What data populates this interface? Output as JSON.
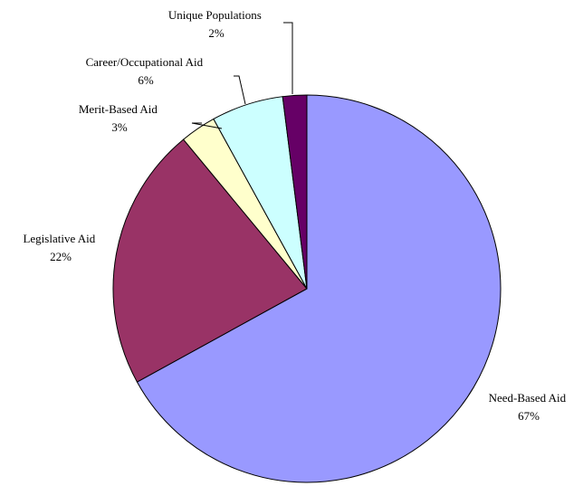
{
  "chart_data": {
    "type": "pie",
    "categories": [
      "Need-Based Aid",
      "Legislative Aid",
      "Merit-Based Aid",
      "Career/Occupational Aid",
      "Unique Populations"
    ],
    "values": [
      67,
      22,
      3,
      6,
      2
    ],
    "value_labels": [
      "67%",
      "22%",
      "3%",
      "6%",
      "2%"
    ],
    "colors": [
      "#9999FF",
      "#993366",
      "#FFFFCC",
      "#CCFFFF",
      "#660066"
    ],
    "start_angle": "12 o'clock",
    "direction": "clockwise",
    "legend": "none",
    "data_labels": "category name and percentage beside each slice"
  }
}
